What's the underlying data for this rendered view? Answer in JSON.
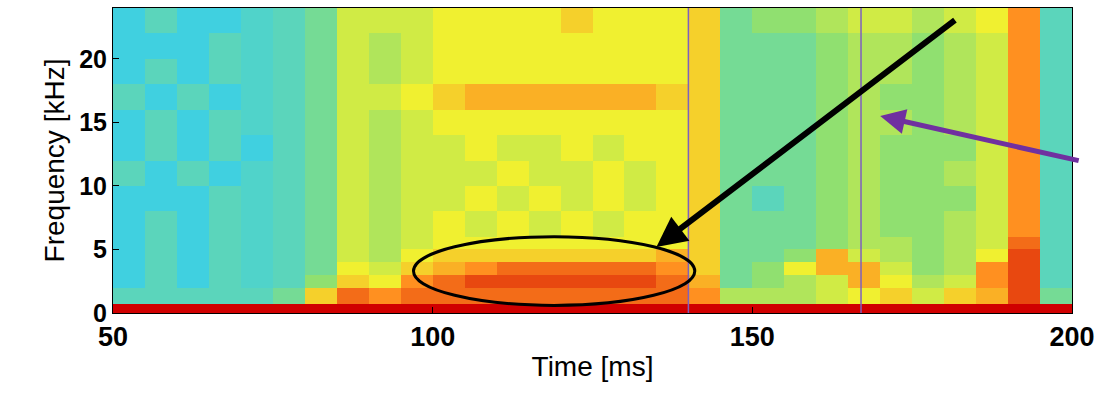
{
  "chart_data": {
    "type": "heatmap",
    "x_label": "Time [ms]",
    "y_label": "Frequency [kHz]",
    "xlim": [
      50,
      200
    ],
    "xticks": [
      50,
      100,
      150,
      200
    ],
    "ylim": [
      0,
      24
    ],
    "yticks": [
      0,
      5,
      10,
      15,
      20
    ],
    "zlim": [
      0,
      10
    ],
    "x_edges": [
      50,
      55,
      60,
      65,
      70,
      75,
      80,
      85,
      90,
      95,
      100,
      105,
      110,
      115,
      120,
      125,
      130,
      135,
      140,
      145,
      150,
      155,
      160,
      165,
      170,
      175,
      180,
      185,
      190,
      195,
      200
    ],
    "y_edges": [
      0,
      0.7,
      2,
      3,
      4,
      5,
      6,
      8,
      10,
      12,
      14,
      16,
      18,
      20,
      22,
      24
    ],
    "z": [
      [
        10,
        10,
        10,
        10,
        10,
        10,
        10,
        10,
        10,
        10,
        10,
        10,
        10,
        10,
        10,
        10,
        10,
        10,
        10,
        10,
        10,
        10,
        10,
        10,
        10,
        10,
        10,
        10,
        10,
        10
      ],
      [
        4,
        4,
        4,
        4,
        4,
        4.5,
        7,
        8.5,
        8,
        8.5,
        8.5,
        8.5,
        8.5,
        8.5,
        8.5,
        8.5,
        8.5,
        8.5,
        8,
        5.5,
        5.5,
        5.5,
        6,
        6.5,
        7,
        6,
        7,
        7.5,
        9,
        4.5
      ],
      [
        3.5,
        4,
        3.5,
        4,
        3.8,
        4,
        5,
        7,
        6.5,
        8,
        8.5,
        9,
        9,
        9,
        9,
        9,
        9,
        8.5,
        7.5,
        4.5,
        5,
        5.5,
        6,
        7.5,
        6.5,
        5.5,
        6,
        8,
        9,
        4
      ],
      [
        3.5,
        4,
        3.5,
        4,
        3.8,
        4,
        4.5,
        6.5,
        6,
        7,
        7.5,
        8,
        8.5,
        8.5,
        8.5,
        8.5,
        8.5,
        8,
        7,
        4.5,
        5,
        6.5,
        7.5,
        7.5,
        6,
        5,
        5.5,
        8,
        9,
        4
      ],
      [
        3.5,
        4,
        3.5,
        4,
        3.8,
        4,
        4.5,
        6,
        5.5,
        6.5,
        7,
        7,
        7,
        7,
        7,
        7,
        7,
        7.5,
        7,
        4.5,
        4.5,
        5,
        7.5,
        6,
        5.5,
        5,
        5.5,
        6.5,
        9,
        4
      ],
      [
        3.5,
        4,
        3.5,
        4,
        3.8,
        4,
        4.5,
        6,
        5.5,
        6,
        6.5,
        6.5,
        6.5,
        6.5,
        6.5,
        6.5,
        6.5,
        6.5,
        7,
        4.5,
        4.5,
        4.5,
        5,
        5.5,
        5.5,
        5,
        5.5,
        6,
        8.5,
        4
      ],
      [
        3.5,
        4,
        3.5,
        4,
        3.8,
        4,
        4.5,
        6,
        5.5,
        6,
        6.5,
        6,
        6.5,
        6,
        6.5,
        6,
        6.5,
        6.5,
        7,
        4.5,
        4.5,
        4.5,
        5,
        5.5,
        5,
        5,
        5.5,
        6,
        8,
        4
      ],
      [
        3.5,
        3.5,
        3.5,
        4,
        3.8,
        4,
        4.5,
        6,
        5.5,
        6,
        6,
        6.5,
        6,
        6.5,
        6,
        6.5,
        6,
        6.5,
        7,
        4.5,
        4,
        4.5,
        5,
        5.5,
        5,
        5,
        5,
        6,
        8,
        4
      ],
      [
        4,
        3.5,
        4,
        3.5,
        3.8,
        4,
        4.5,
        6,
        5.5,
        6,
        6,
        6,
        6.5,
        6,
        6,
        6.5,
        6,
        6.5,
        7,
        4.5,
        4.5,
        4.5,
        5,
        5.5,
        5,
        5,
        5.5,
        6,
        8,
        4
      ],
      [
        3.5,
        4,
        3.5,
        4,
        3.5,
        4,
        4.5,
        6,
        5.5,
        6,
        6,
        6.5,
        6,
        6,
        6.5,
        6,
        6.5,
        6.5,
        7,
        4.5,
        4.5,
        4.5,
        5,
        5.5,
        5,
        5,
        5,
        6,
        8,
        4
      ],
      [
        3.5,
        4,
        3.5,
        4,
        3.8,
        4,
        4.5,
        6,
        5.5,
        6,
        6.5,
        6.5,
        6.5,
        6.5,
        6.5,
        6.5,
        6.5,
        6.5,
        7,
        4.5,
        4.5,
        4.5,
        5,
        5.5,
        5.5,
        5,
        5.5,
        6,
        8,
        4
      ],
      [
        4,
        3.5,
        4,
        3.5,
        3.8,
        4,
        4.5,
        6,
        6,
        6.5,
        7,
        7.5,
        7.5,
        7.5,
        7.5,
        7.5,
        7.5,
        7,
        7,
        4.5,
        4.5,
        4.5,
        5,
        5.5,
        5,
        5,
        5.5,
        6,
        8,
        4
      ],
      [
        3.5,
        4,
        3.5,
        4,
        3.8,
        4,
        4.5,
        6,
        5.5,
        6,
        6.5,
        6.5,
        6.5,
        6.5,
        6.5,
        6.5,
        6.5,
        6.5,
        7,
        4.5,
        4.5,
        4.5,
        5,
        5.5,
        5.5,
        5,
        5.5,
        6,
        8,
        4
      ],
      [
        3.5,
        3.5,
        3.5,
        4,
        3.8,
        4,
        4.5,
        6,
        5.5,
        6,
        6.5,
        6.5,
        6.5,
        6.5,
        6.5,
        6.5,
        6.5,
        6.5,
        7,
        4.5,
        4.5,
        4.5,
        5,
        5.5,
        5.5,
        5,
        5.5,
        6,
        8,
        4
      ],
      [
        3.5,
        4,
        3.5,
        3.5,
        3.8,
        4,
        4.5,
        6,
        6,
        6,
        6.5,
        6.5,
        6.5,
        6.5,
        7,
        6.5,
        6.5,
        6.5,
        7,
        4.5,
        5,
        5,
        5.5,
        6,
        6,
        5.5,
        6,
        6.5,
        8,
        4
      ]
    ],
    "vlines": {
      "values": [
        140,
        167
      ],
      "color": "#7f5fbf"
    },
    "ellipse": {
      "x": [
        97,
        141
      ],
      "y": [
        0.6,
        6
      ],
      "color": "#000000"
    },
    "arrows": [
      {
        "x": 135,
        "y": 5.2,
        "color": "#000000"
      },
      {
        "x": 170,
        "y": 15.5,
        "color": "#7030a0"
      }
    ]
  }
}
